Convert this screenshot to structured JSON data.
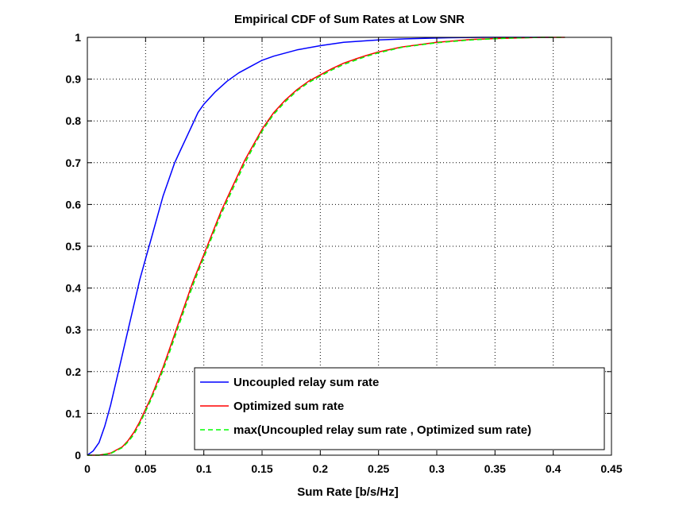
{
  "chart_data": {
    "type": "line",
    "title": "Empirical CDF of Sum Rates at Low SNR",
    "xlabel": "Sum Rate [b/s/Hz]",
    "ylabel": "",
    "xlim": [
      0,
      0.45
    ],
    "ylim": [
      0,
      1
    ],
    "xticks": [
      0,
      0.05,
      0.1,
      0.15,
      0.2,
      0.25,
      0.3,
      0.35,
      0.4,
      0.45
    ],
    "xtick_labels": [
      "0",
      "0.05",
      "0.1",
      "0.15",
      "0.2",
      "0.25",
      "0.3",
      "0.35",
      "0.4",
      "0.45"
    ],
    "yticks": [
      0,
      0.1,
      0.2,
      0.3,
      0.4,
      0.5,
      0.6,
      0.7,
      0.8,
      0.9,
      1
    ],
    "ytick_labels": [
      "0",
      "0.1",
      "0.2",
      "0.3",
      "0.4",
      "0.5",
      "0.6",
      "0.7",
      "0.8",
      "0.9",
      "1"
    ],
    "grid": true,
    "legend_position": "bottom-right",
    "series": [
      {
        "name": "Uncoupled relay sum rate",
        "color": "#0000ff",
        "dash": "solid",
        "x": [
          0.0,
          0.005,
          0.01,
          0.015,
          0.02,
          0.025,
          0.03,
          0.035,
          0.04,
          0.045,
          0.05,
          0.055,
          0.06,
          0.065,
          0.07,
          0.075,
          0.08,
          0.085,
          0.09,
          0.095,
          0.1,
          0.11,
          0.12,
          0.13,
          0.14,
          0.15,
          0.16,
          0.18,
          0.2,
          0.22,
          0.25,
          0.28,
          0.31,
          0.34,
          0.37,
          0.4
        ],
        "y": [
          0.0,
          0.01,
          0.03,
          0.07,
          0.12,
          0.18,
          0.24,
          0.3,
          0.36,
          0.42,
          0.47,
          0.52,
          0.57,
          0.62,
          0.66,
          0.7,
          0.73,
          0.76,
          0.79,
          0.82,
          0.84,
          0.87,
          0.895,
          0.915,
          0.93,
          0.945,
          0.955,
          0.97,
          0.98,
          0.988,
          0.994,
          0.997,
          0.999,
          1.0,
          1.0,
          1.0
        ]
      },
      {
        "name": "Optimized sum rate",
        "color": "#ff0000",
        "dash": "solid",
        "x": [
          0.0,
          0.01,
          0.02,
          0.03,
          0.035,
          0.04,
          0.045,
          0.05,
          0.055,
          0.06,
          0.065,
          0.07,
          0.075,
          0.08,
          0.085,
          0.09,
          0.095,
          0.1,
          0.105,
          0.11,
          0.115,
          0.12,
          0.125,
          0.13,
          0.135,
          0.14,
          0.145,
          0.15,
          0.155,
          0.16,
          0.17,
          0.18,
          0.19,
          0.2,
          0.21,
          0.22,
          0.23,
          0.24,
          0.25,
          0.27,
          0.3,
          0.33,
          0.36,
          0.39,
          0.41
        ],
        "y": [
          0.0,
          0.0,
          0.005,
          0.02,
          0.035,
          0.055,
          0.08,
          0.11,
          0.14,
          0.175,
          0.21,
          0.25,
          0.29,
          0.33,
          0.37,
          0.41,
          0.445,
          0.48,
          0.515,
          0.55,
          0.585,
          0.615,
          0.645,
          0.675,
          0.705,
          0.73,
          0.755,
          0.78,
          0.8,
          0.82,
          0.85,
          0.875,
          0.895,
          0.91,
          0.925,
          0.938,
          0.948,
          0.957,
          0.965,
          0.977,
          0.988,
          0.995,
          0.998,
          1.0,
          1.0
        ]
      },
      {
        "name": "max(Uncoupled relay sum rate , Optimized sum rate)",
        "color": "#00ff00",
        "dash": "dashed",
        "x": [
          0.0,
          0.01,
          0.02,
          0.03,
          0.035,
          0.04,
          0.045,
          0.05,
          0.055,
          0.06,
          0.065,
          0.07,
          0.075,
          0.08,
          0.085,
          0.09,
          0.095,
          0.1,
          0.105,
          0.11,
          0.115,
          0.12,
          0.125,
          0.13,
          0.135,
          0.14,
          0.145,
          0.15,
          0.155,
          0.16,
          0.17,
          0.18,
          0.19,
          0.2,
          0.21,
          0.22,
          0.23,
          0.24,
          0.25,
          0.27,
          0.3,
          0.33,
          0.36,
          0.39,
          0.41
        ],
        "y": [
          0.0,
          0.0,
          0.004,
          0.018,
          0.032,
          0.05,
          0.075,
          0.105,
          0.135,
          0.168,
          0.203,
          0.242,
          0.282,
          0.322,
          0.362,
          0.402,
          0.438,
          0.473,
          0.508,
          0.543,
          0.578,
          0.608,
          0.638,
          0.668,
          0.698,
          0.724,
          0.75,
          0.775,
          0.796,
          0.816,
          0.846,
          0.872,
          0.892,
          0.907,
          0.922,
          0.935,
          0.945,
          0.955,
          0.963,
          0.976,
          0.987,
          0.994,
          0.998,
          1.0,
          1.0
        ]
      }
    ]
  }
}
